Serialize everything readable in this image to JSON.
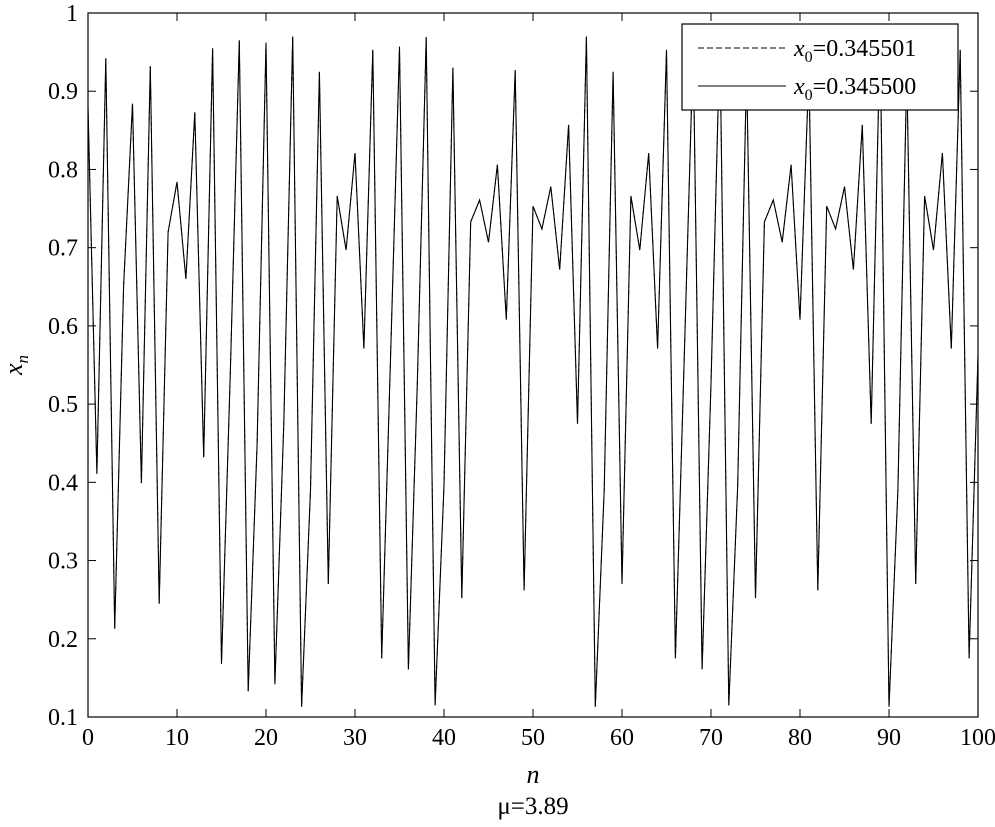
{
  "chart_data": {
    "type": "line",
    "title": "",
    "xlabel": "n",
    "ylabel_main": "x",
    "ylabel_sub": "n",
    "caption": "μ=3.89",
    "xlim": [
      0,
      100
    ],
    "ylim": [
      0.1,
      1.0
    ],
    "xticks": [
      0,
      10,
      20,
      30,
      40,
      50,
      60,
      70,
      80,
      90,
      100
    ],
    "xtick_labels": [
      "0",
      "10",
      "20",
      "30",
      "40",
      "50",
      "60",
      "70",
      "80",
      "90",
      "100"
    ],
    "yticks": [
      0.1,
      0.2,
      0.3,
      0.4,
      0.5,
      0.6,
      0.7,
      0.8,
      0.9,
      1.0
    ],
    "ytick_labels": [
      "0.1",
      "0.2",
      "0.3",
      "0.4",
      "0.5",
      "0.6",
      "0.7",
      "0.8",
      "0.9",
      "1"
    ],
    "grid": false,
    "legend_position": "top-right",
    "legend_entries": [
      {
        "var": "x",
        "sub": "0",
        "value": "=0.345501",
        "style": "dashed"
      },
      {
        "var": "x",
        "sub": "0",
        "value": "=0.345500",
        "style": "solid"
      }
    ],
    "series": [
      {
        "style": "dashed",
        "x0": 0.345501,
        "x_start": 0,
        "x_step": 1,
        "values": [
          0.88,
          0.411,
          0.942,
          0.213,
          0.651,
          0.884,
          0.399,
          0.932,
          0.245,
          0.72,
          0.784,
          0.66,
          0.873,
          0.432,
          0.955,
          0.168,
          0.544,
          0.965,
          0.133,
          0.449,
          0.962,
          0.142,
          0.475,
          0.97,
          0.113,
          0.39,
          0.925,
          0.27,
          0.766,
          0.697,
          0.821,
          0.571,
          0.953,
          0.175,
          0.562,
          0.957,
          0.161,
          0.526,
          0.969,
          0.115,
          0.396,
          0.93,
          0.252,
          0.733,
          0.761,
          0.707,
          0.806,
          0.608,
          0.927,
          0.262,
          0.753,
          0.724,
          0.778,
          0.672,
          0.857,
          0.475,
          0.97,
          0.113,
          0.39,
          0.925,
          0.27,
          0.766,
          0.697,
          0.821,
          0.571,
          0.953,
          0.175,
          0.562,
          0.957,
          0.161,
          0.526,
          0.969,
          0.115,
          0.396,
          0.93,
          0.252,
          0.733,
          0.761,
          0.707,
          0.806,
          0.608,
          0.927,
          0.262,
          0.753,
          0.724,
          0.778,
          0.672,
          0.857,
          0.475,
          0.97,
          0.113,
          0.39,
          0.925,
          0.27,
          0.766,
          0.697,
          0.821,
          0.571,
          0.953,
          0.175,
          0.562
        ]
      },
      {
        "style": "solid",
        "x0": 0.3455,
        "x_start": 0,
        "x_step": 1,
        "values": [
          0.88,
          0.411,
          0.942,
          0.213,
          0.651,
          0.884,
          0.399,
          0.932,
          0.245,
          0.72,
          0.784,
          0.66,
          0.873,
          0.432,
          0.955,
          0.168,
          0.544,
          0.965,
          0.133,
          0.449,
          0.962,
          0.142,
          0.475,
          0.97,
          0.113,
          0.39,
          0.925,
          0.27,
          0.766,
          0.697,
          0.821,
          0.571,
          0.953,
          0.175,
          0.562,
          0.957,
          0.161,
          0.526,
          0.969,
          0.115,
          0.396,
          0.93,
          0.252,
          0.733,
          0.761,
          0.707,
          0.806,
          0.608,
          0.927,
          0.262,
          0.753,
          0.724,
          0.778,
          0.672,
          0.857,
          0.475,
          0.97,
          0.113,
          0.39,
          0.925,
          0.27,
          0.766,
          0.697,
          0.821,
          0.571,
          0.953,
          0.175,
          0.562,
          0.957,
          0.161,
          0.526,
          0.969,
          0.115,
          0.396,
          0.93,
          0.252,
          0.733,
          0.761,
          0.707,
          0.806,
          0.608,
          0.927,
          0.262,
          0.753,
          0.724,
          0.778,
          0.672,
          0.857,
          0.475,
          0.97,
          0.113,
          0.39,
          0.925,
          0.27,
          0.766,
          0.697,
          0.821,
          0.571,
          0.953,
          0.175,
          0.562
        ]
      }
    ]
  }
}
